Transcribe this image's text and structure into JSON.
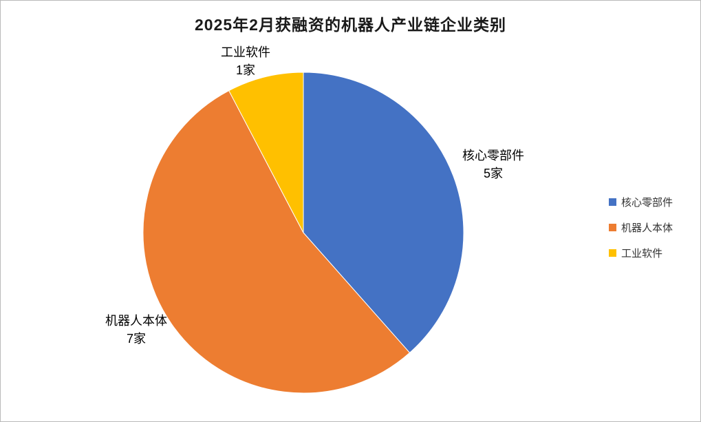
{
  "chart_data": {
    "type": "pie",
    "title": "2025年2月获融资的机器人产业链企业类别",
    "categories": [
      "核心零部件",
      "机器人本体",
      "工业软件"
    ],
    "values": [
      5,
      7,
      1
    ],
    "value_labels": [
      "5家",
      "7家",
      "1家"
    ],
    "colors": [
      "#4472C4",
      "#ED7D31",
      "#FFC000"
    ],
    "legend_position": "right",
    "start_angle_deg": 0,
    "direction": "clockwise"
  }
}
